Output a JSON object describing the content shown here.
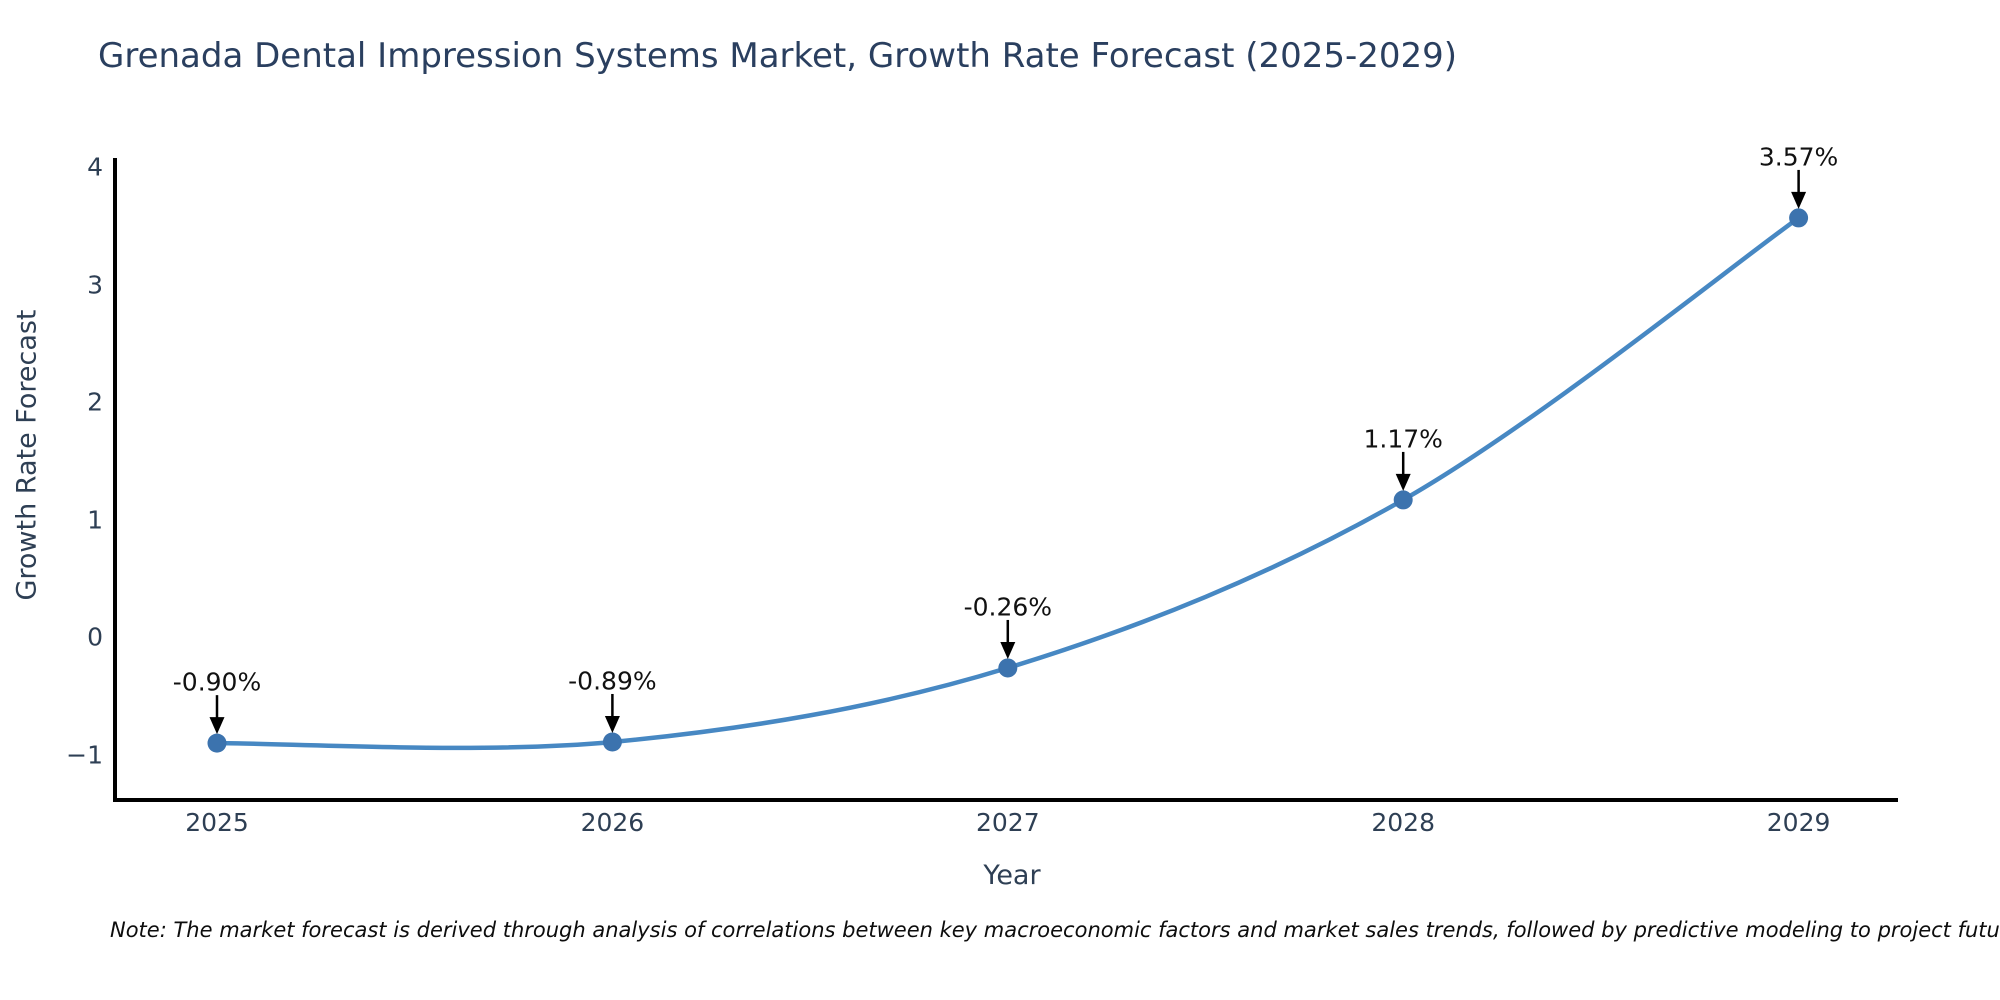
{
  "chart_data": {
    "type": "line",
    "title": "Grenada Dental Impression Systems Market, Growth Rate Forecast (2025-2029)",
    "xlabel": "Year",
    "ylabel": "Growth Rate Forecast",
    "categories": [
      "2025",
      "2026",
      "2027",
      "2028",
      "2029"
    ],
    "series": [
      {
        "name": "Growth Rate Forecast",
        "values": [
          -0.9,
          -0.89,
          -0.26,
          1.17,
          3.57
        ],
        "point_labels": [
          "-0.90%",
          "-0.89%",
          "-0.26%",
          "1.17%",
          "3.57%"
        ]
      }
    ],
    "ytick_labels": [
      "−1",
      "0",
      "1",
      "2",
      "3",
      "4"
    ],
    "ytick_values": [
      -1,
      0,
      1,
      2,
      3,
      4
    ],
    "ylim": [
      -1.4,
      4.08
    ],
    "grid": false,
    "legend": false,
    "curve": "spline",
    "annotations_have_arrows": true,
    "colors": {
      "line": "#4788c3",
      "marker": "#3c73ae",
      "axis_spine": "#000000",
      "title_text": "#2a3f5f",
      "tick_text": "#2e3f54",
      "annotation_text": "#111111",
      "arrow": "#000000",
      "background": "#ffffff"
    },
    "note": "Note: The market forecast is derived through analysis of correlations between key macroeconomic factors and market sales trends, followed by predictive modeling to project future sales"
  }
}
